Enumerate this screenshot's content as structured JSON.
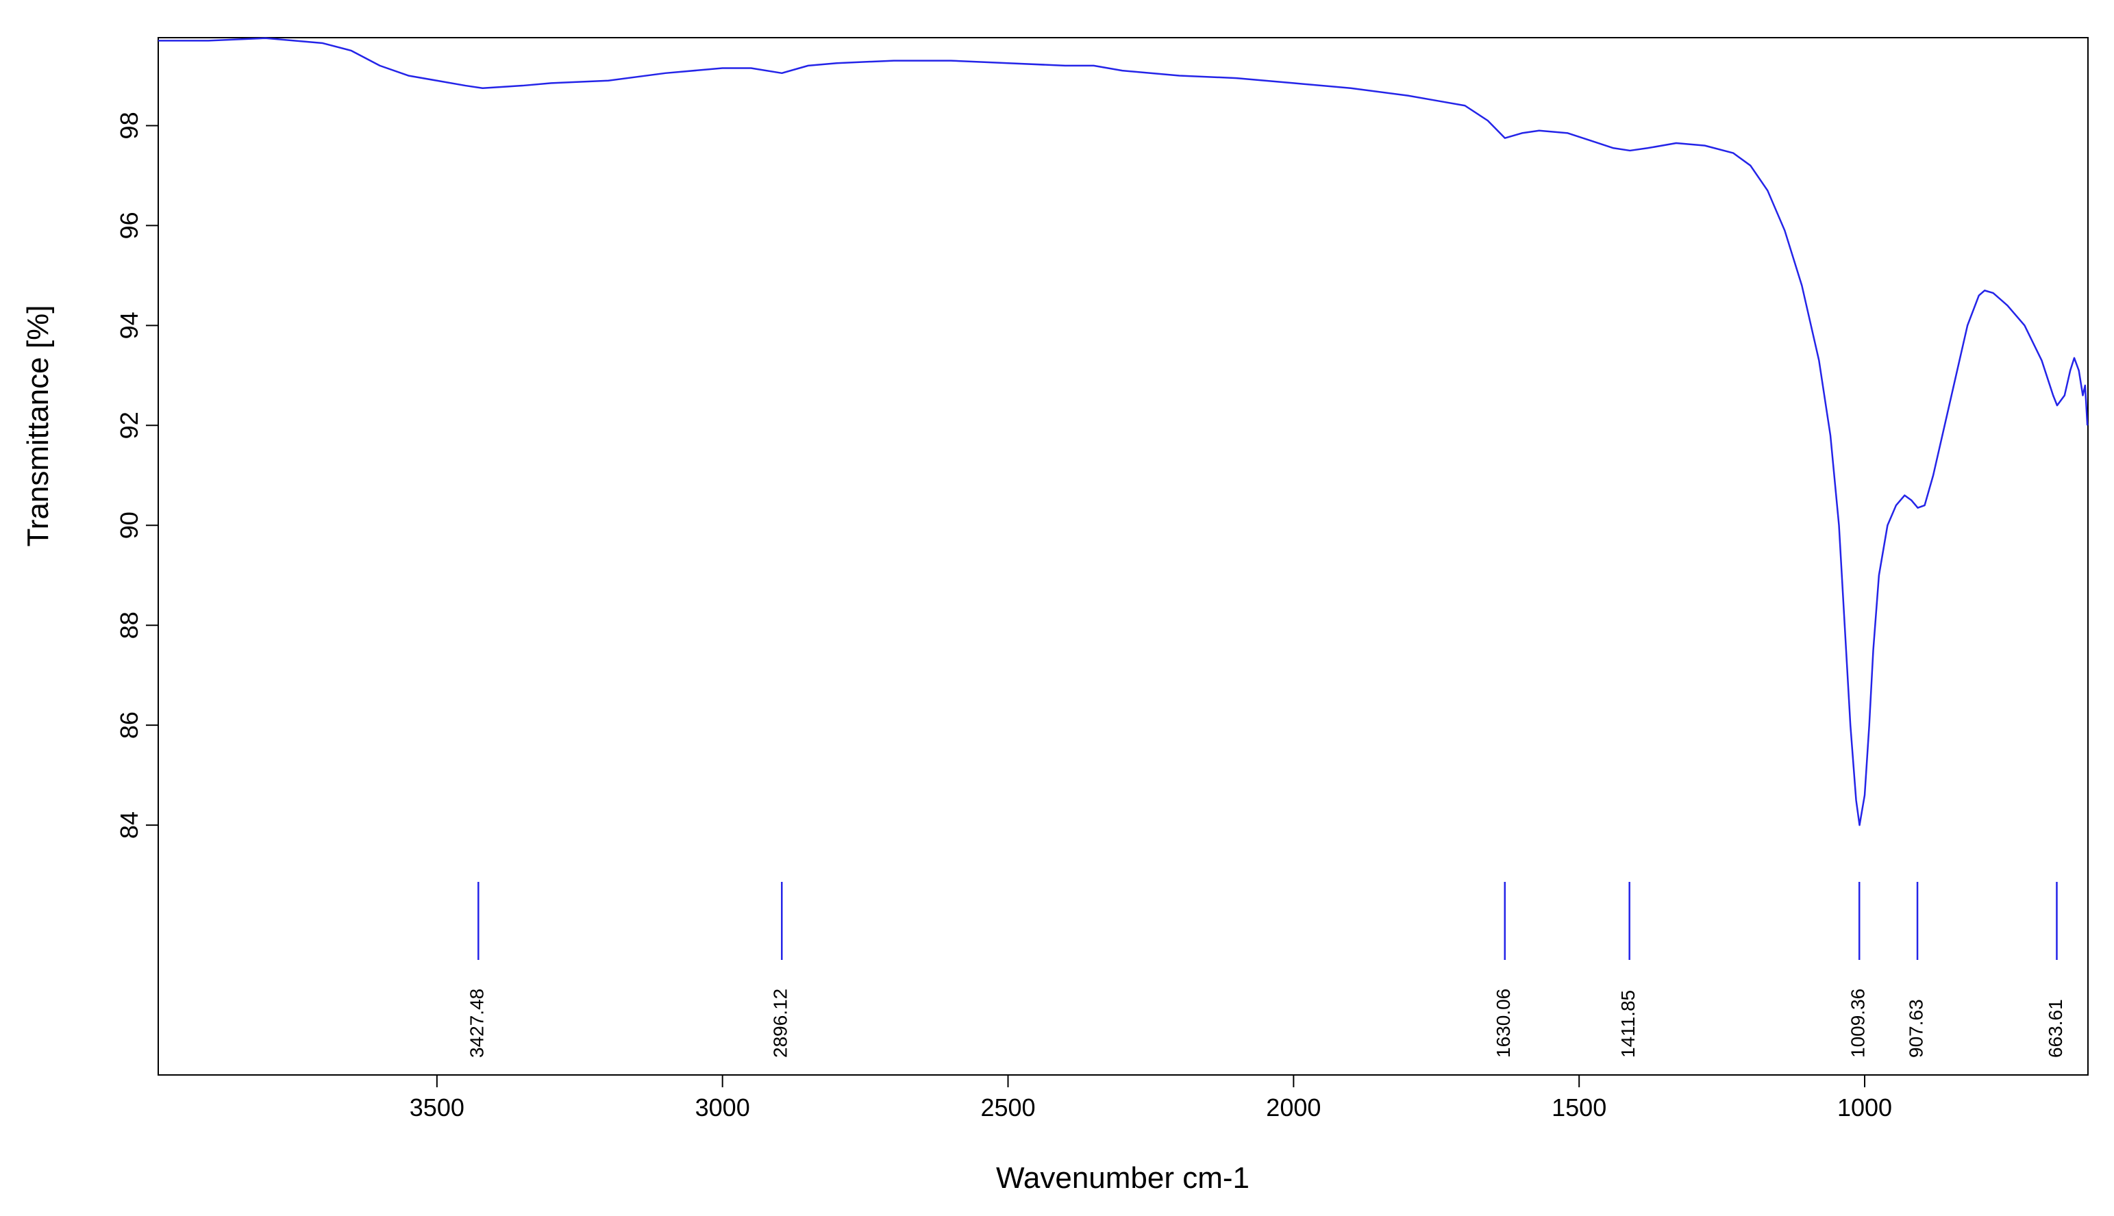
{
  "chart_data": {
    "type": "line",
    "x_label": "Wavenumber cm-1",
    "y_label": "Transmittance [%]",
    "color": "#2424e8",
    "xlim": [
      3988,
      609
    ],
    "ylim": [
      79,
      99.76
    ],
    "xticks": [
      3500,
      3000,
      2500,
      2000,
      1500,
      1000
    ],
    "yticks": [
      84,
      86,
      88,
      90,
      92,
      94,
      96,
      98
    ],
    "x": [
      3988,
      3900,
      3800,
      3700,
      3650,
      3600,
      3550,
      3500,
      3450,
      3420,
      3350,
      3300,
      3200,
      3100,
      3000,
      2950,
      2896,
      2850,
      2800,
      2700,
      2600,
      2500,
      2400,
      2350,
      2300,
      2200,
      2100,
      2000,
      1900,
      1800,
      1750,
      1700,
      1660,
      1630,
      1600,
      1570,
      1520,
      1480,
      1440,
      1411,
      1380,
      1330,
      1280,
      1230,
      1200,
      1170,
      1140,
      1110,
      1080,
      1060,
      1045,
      1035,
      1025,
      1015,
      1009,
      1000,
      992,
      985,
      975,
      960,
      945,
      930,
      918,
      907,
      895,
      880,
      860,
      840,
      820,
      800,
      790,
      775,
      750,
      720,
      690,
      670,
      663,
      650,
      640,
      633,
      625,
      618,
      614,
      610
    ],
    "values": [
      99.7,
      99.7,
      99.75,
      99.65,
      99.5,
      99.2,
      99.0,
      98.9,
      98.8,
      98.75,
      98.8,
      98.85,
      98.9,
      99.05,
      99.15,
      99.15,
      99.05,
      99.2,
      99.25,
      99.3,
      99.3,
      99.25,
      99.2,
      99.2,
      99.1,
      99.0,
      98.95,
      98.85,
      98.75,
      98.6,
      98.5,
      98.4,
      98.1,
      97.75,
      97.85,
      97.9,
      97.85,
      97.7,
      97.55,
      97.5,
      97.55,
      97.65,
      97.6,
      97.45,
      97.2,
      96.7,
      95.9,
      94.8,
      93.3,
      91.8,
      90.0,
      88.0,
      86.0,
      84.5,
      84.0,
      84.6,
      86.0,
      87.5,
      89.0,
      90.0,
      90.4,
      90.6,
      90.5,
      90.35,
      90.4,
      91.0,
      92.0,
      93.0,
      94.0,
      94.6,
      94.7,
      94.65,
      94.4,
      94.0,
      93.3,
      92.6,
      92.4,
      92.6,
      93.1,
      93.35,
      93.1,
      92.6,
      92.8,
      92.0
    ],
    "peaks": [
      3427.48,
      2896.12,
      1630.06,
      1411.85,
      1009.36,
      907.63,
      663.61
    ]
  }
}
